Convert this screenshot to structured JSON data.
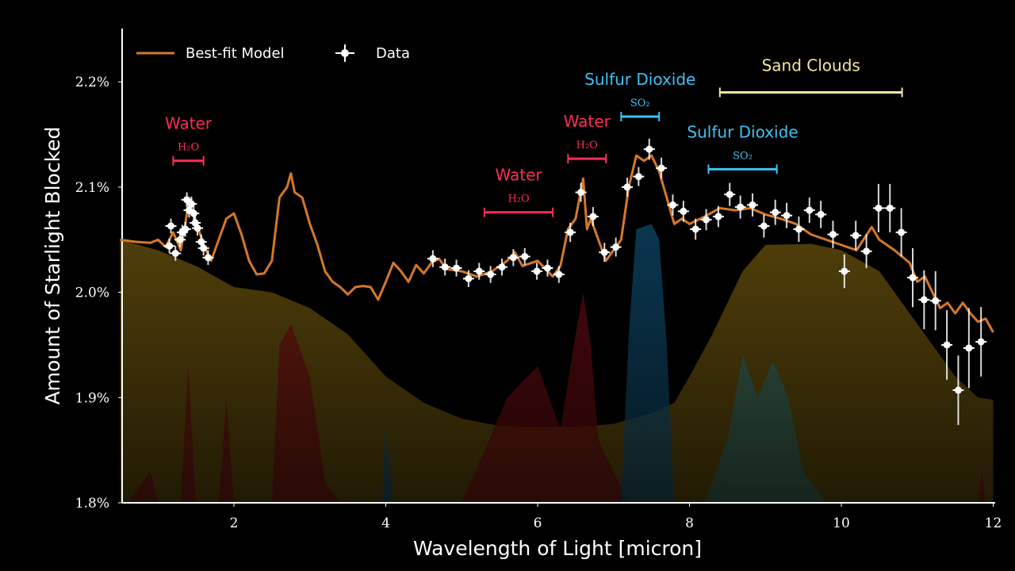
{
  "chart_data": {
    "type": "line",
    "title": "",
    "xlabel": "Wavelength of Light [micron]",
    "ylabel": "Amount of Starlight Blocked",
    "xlim": [
      0.5,
      12
    ],
    "ylim": [
      1.8,
      2.25
    ],
    "x_ticks": [
      2,
      4,
      6,
      8,
      10,
      12
    ],
    "x_tick_labels": [
      "2",
      "4",
      "6",
      "8",
      "10",
      "12"
    ],
    "y_ticks": [
      1.8,
      1.9,
      2.0,
      2.1,
      2.2
    ],
    "y_tick_labels": [
      "1.8%",
      "1.9%",
      "2.0%",
      "2.1%",
      "2.2%"
    ],
    "legend": {
      "placement": "top-left",
      "entries": [
        "Best-fit Model",
        "Data"
      ]
    },
    "colors": {
      "model": "#d4782a",
      "data": "#ffffff",
      "water": "#ff2d55",
      "so2": "#3fc2f5",
      "clouds": "#f5e6a0"
    },
    "model": {
      "name": "Best-fit Model",
      "x": [
        0.5,
        0.7,
        0.9,
        1.0,
        1.1,
        1.2,
        1.3,
        1.35,
        1.4,
        1.5,
        1.6,
        1.7,
        1.8,
        1.9,
        2.0,
        2.1,
        2.2,
        2.3,
        2.4,
        2.5,
        2.6,
        2.7,
        2.75,
        2.8,
        2.9,
        3.0,
        3.1,
        3.2,
        3.3,
        3.4,
        3.5,
        3.6,
        3.7,
        3.8,
        3.9,
        4.0,
        4.1,
        4.2,
        4.3,
        4.4,
        4.5,
        4.6,
        4.7,
        4.8,
        5.0,
        5.2,
        5.4,
        5.6,
        5.7,
        5.8,
        6.0,
        6.2,
        6.3,
        6.4,
        6.5,
        6.6,
        6.65,
        6.7,
        6.8,
        6.9,
        7.0,
        7.1,
        7.2,
        7.3,
        7.4,
        7.5,
        7.6,
        7.7,
        7.8,
        7.9,
        8.0,
        8.2,
        8.4,
        8.6,
        8.8,
        9.0,
        9.2,
        9.4,
        9.6,
        9.8,
        10.0,
        10.2,
        10.4,
        10.5,
        10.7,
        10.9,
        11.0,
        11.1,
        11.2,
        11.3,
        11.4,
        11.5,
        11.6,
        11.7,
        11.8,
        11.9,
        12.0
      ],
      "y": [
        2.05,
        2.048,
        2.047,
        2.05,
        2.043,
        2.057,
        2.04,
        2.06,
        2.085,
        2.068,
        2.045,
        2.03,
        2.05,
        2.07,
        2.075,
        2.055,
        2.03,
        2.017,
        2.018,
        2.03,
        2.09,
        2.1,
        2.113,
        2.095,
        2.09,
        2.065,
        2.045,
        2.02,
        2.01,
        2.005,
        1.998,
        2.005,
        2.006,
        2.005,
        1.993,
        2.01,
        2.028,
        2.02,
        2.01,
        2.026,
        2.018,
        2.028,
        2.032,
        2.022,
        2.02,
        2.015,
        2.02,
        2.03,
        2.038,
        2.025,
        2.03,
        2.015,
        2.025,
        2.06,
        2.07,
        2.108,
        2.06,
        2.07,
        2.05,
        2.03,
        2.04,
        2.05,
        2.1,
        2.13,
        2.125,
        2.13,
        2.115,
        2.09,
        2.065,
        2.07,
        2.065,
        2.072,
        2.08,
        2.078,
        2.08,
        2.074,
        2.07,
        2.065,
        2.055,
        2.05,
        2.045,
        2.04,
        2.062,
        2.05,
        2.04,
        2.028,
        2.01,
        2.015,
        2.0,
        1.985,
        1.99,
        1.98,
        1.99,
        1.98,
        1.972,
        1.975,
        1.962
      ]
    },
    "data": {
      "name": "Data",
      "x": [
        1.15,
        1.17,
        1.23,
        1.29,
        1.32,
        1.36,
        1.38,
        1.41,
        1.44,
        1.47,
        1.49,
        1.52,
        1.57,
        1.6,
        1.66,
        4.62,
        4.78,
        4.93,
        5.09,
        5.23,
        5.38,
        5.53,
        5.68,
        5.83,
        5.99,
        6.13,
        6.28,
        6.43,
        6.57,
        6.73,
        6.88,
        7.03,
        7.18,
        7.33,
        7.47,
        7.63,
        7.78,
        7.92,
        8.08,
        8.22,
        8.38,
        8.53,
        8.67,
        8.83,
        8.98,
        9.13,
        9.28,
        9.44,
        9.58,
        9.73,
        9.89,
        10.04,
        10.19,
        10.33,
        10.49,
        10.64,
        10.79,
        10.94,
        11.09,
        11.24,
        11.39,
        11.54,
        11.68,
        11.84
      ],
      "y": [
        2.044,
        2.063,
        2.037,
        2.05,
        2.057,
        2.06,
        2.088,
        2.078,
        2.084,
        2.075,
        2.066,
        2.061,
        2.048,
        2.042,
        2.033,
        2.032,
        2.024,
        2.023,
        2.013,
        2.02,
        2.017,
        2.024,
        2.033,
        2.034,
        2.02,
        2.023,
        2.017,
        2.057,
        2.095,
        2.072,
        2.038,
        2.043,
        2.1,
        2.11,
        2.136,
        2.118,
        2.083,
        2.077,
        2.06,
        2.069,
        2.072,
        2.093,
        2.081,
        2.083,
        2.063,
        2.076,
        2.073,
        2.06,
        2.078,
        2.074,
        2.055,
        2.02,
        2.054,
        2.039,
        2.08,
        2.08,
        2.057,
        2.014,
        1.993,
        1.992,
        1.95,
        1.907,
        1.947,
        1.953
      ],
      "yerr": [
        0.004,
        0.004,
        0.004,
        0.004,
        0.004,
        0.004,
        0.004,
        0.004,
        0.004,
        0.004,
        0.004,
        0.004,
        0.004,
        0.004,
        0.004,
        0.005,
        0.005,
        0.005,
        0.005,
        0.005,
        0.005,
        0.005,
        0.005,
        0.005,
        0.005,
        0.005,
        0.005,
        0.006,
        0.006,
        0.006,
        0.006,
        0.006,
        0.006,
        0.006,
        0.007,
        0.007,
        0.007,
        0.007,
        0.007,
        0.007,
        0.007,
        0.008,
        0.008,
        0.008,
        0.008,
        0.009,
        0.009,
        0.009,
        0.009,
        0.01,
        0.01,
        0.013,
        0.011,
        0.013,
        0.02,
        0.02,
        0.02,
        0.025,
        0.025,
        0.025,
        0.03,
        0.03,
        0.035,
        0.03
      ]
    },
    "contributions": [
      {
        "name": "Sand Clouds",
        "color": "#a88414",
        "x": [
          0.5,
          1.0,
          1.5,
          2.0,
          2.5,
          3.0,
          3.5,
          4.0,
          4.5,
          5.0,
          5.5,
          6.0,
          6.5,
          7.0,
          7.5,
          7.8,
          8.0,
          8.3,
          8.7,
          9.0,
          9.6,
          10.0,
          10.5,
          11.0,
          11.5,
          11.8,
          12.0
        ],
        "y": [
          2.05,
          2.04,
          2.025,
          2.005,
          2.0,
          1.985,
          1.96,
          1.92,
          1.895,
          1.88,
          1.873,
          1.872,
          1.872,
          1.875,
          1.885,
          1.895,
          1.92,
          1.96,
          2.02,
          2.045,
          2.046,
          2.04,
          2.02,
          1.97,
          1.92,
          1.9,
          1.898
        ]
      },
      {
        "name": "Water",
        "color": "#b0141e",
        "x": [
          0.6,
          0.9,
          1.0,
          1.3,
          1.4,
          1.5,
          1.8,
          1.9,
          2.0,
          2.5,
          2.6,
          2.75,
          3.0,
          3.2,
          3.4,
          5.0,
          5.3,
          5.6,
          6.0,
          6.3,
          6.5,
          6.6,
          6.7,
          6.8,
          7.0,
          7.2,
          11.8,
          11.85,
          11.9
        ],
        "y": [
          1.8,
          1.83,
          1.8,
          1.8,
          1.93,
          1.8,
          1.8,
          1.9,
          1.8,
          1.8,
          1.95,
          1.97,
          1.92,
          1.82,
          1.8,
          1.8,
          1.85,
          1.9,
          1.93,
          1.87,
          1.96,
          2.0,
          1.95,
          1.86,
          1.83,
          1.8,
          1.8,
          1.83,
          1.8
        ]
      },
      {
        "name": "Sulfur Dioxide",
        "color": "#1a7fb8",
        "x": [
          3.95,
          4.0,
          4.1,
          7.1,
          7.2,
          7.3,
          7.5,
          7.6,
          7.7,
          7.8
        ],
        "y": [
          1.8,
          1.875,
          1.8,
          1.8,
          1.96,
          2.06,
          2.065,
          2.05,
          1.95,
          1.8
        ]
      },
      {
        "name": "Sulfur Dioxide",
        "color": "#4fa7a0",
        "x": [
          8.2,
          8.5,
          8.7,
          8.9,
          9.1,
          9.3,
          9.5,
          9.8
        ],
        "y": [
          1.8,
          1.86,
          1.94,
          1.9,
          1.935,
          1.9,
          1.83,
          1.8
        ]
      }
    ],
    "annotations": [
      {
        "label": "Water",
        "sub": "H₂O",
        "color": "#ff2d55",
        "x0": 1.2,
        "x1": 1.6,
        "y": 2.125
      },
      {
        "label": "Water",
        "sub": "H₂O",
        "color": "#ff2d55",
        "x0": 5.3,
        "x1": 6.2,
        "y": 2.076
      },
      {
        "label": "Water",
        "sub": "H₂O",
        "color": "#ff2d55",
        "x0": 6.4,
        "x1": 6.9,
        "y": 2.127
      },
      {
        "label": "Sulfur Dioxide",
        "sub": "SO₂",
        "color": "#3fc2f5",
        "x0": 7.1,
        "x1": 7.6,
        "y": 2.167
      },
      {
        "label": "Sulfur Dioxide",
        "sub": "SO₂",
        "color": "#3fc2f5",
        "x0": 8.25,
        "x1": 9.15,
        "y": 2.117
      },
      {
        "label": "Sand Clouds",
        "sub": "",
        "color": "#f5e6a0",
        "x0": 8.4,
        "x1": 10.8,
        "y": 2.19
      }
    ]
  }
}
